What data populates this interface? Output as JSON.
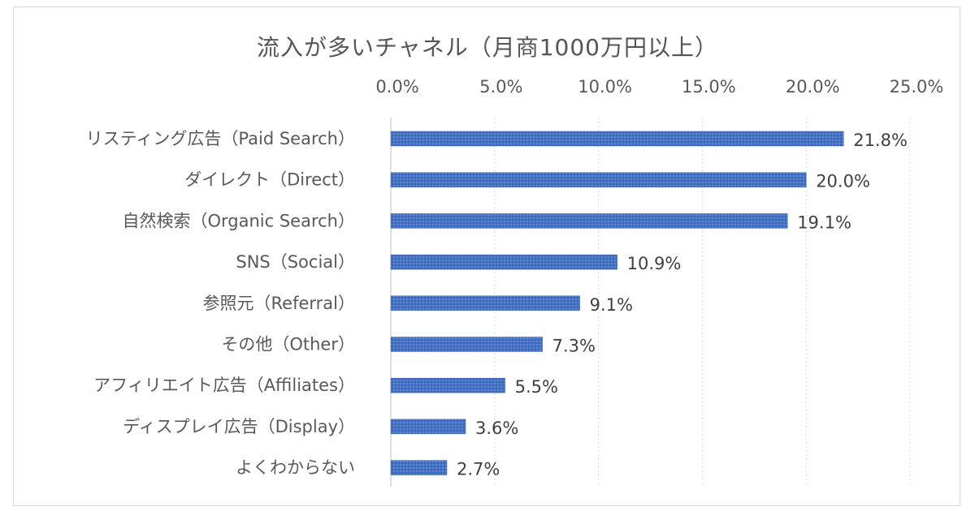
{
  "chart_data": {
    "type": "bar",
    "orientation": "horizontal",
    "title": "流入が多いチャネル（月商1000万円以上）",
    "categories": [
      "リスティング広告（Paid Search）",
      "ダイレクト（Direct）",
      "自然検索（Organic Search）",
      "SNS（Social）",
      "参照元（Referral）",
      "その他（Other）",
      "アフィリエイト広告（Affiliates）",
      "ディスプレイ広告（Display）",
      "よくわからない"
    ],
    "values": [
      21.8,
      20.0,
      19.1,
      10.9,
      9.1,
      7.3,
      5.5,
      3.6,
      2.7
    ],
    "data_labels": [
      "21.8%",
      "20.0%",
      "19.1%",
      "10.9%",
      "9.1%",
      "7.3%",
      "5.5%",
      "3.6%",
      "2.7%"
    ],
    "x_ticks": [
      "0.0%",
      "5.0%",
      "10.0%",
      "15.0%",
      "20.0%",
      "25.0%"
    ],
    "xlim": [
      0,
      25
    ],
    "x_axis_position": "top",
    "grid": true,
    "legend": "none",
    "bar_color": "#4472c4"
  }
}
